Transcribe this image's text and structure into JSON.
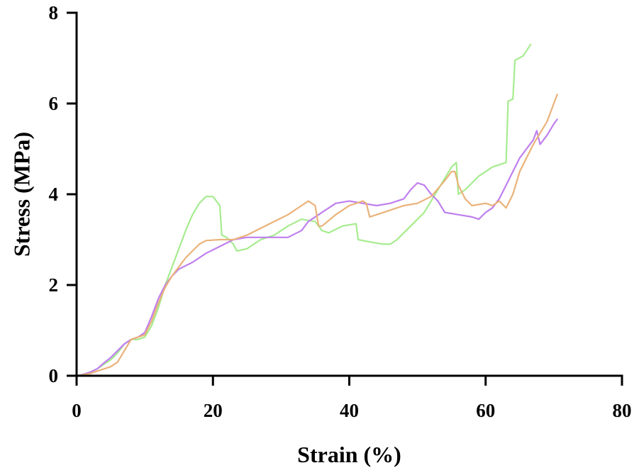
{
  "chart_data": {
    "type": "line",
    "xlabel": "Strain (%)",
    "ylabel": "Stress (MPa)",
    "xlim": [
      0,
      80
    ],
    "ylim": [
      0,
      8
    ],
    "xticks": [
      0,
      20,
      40,
      60,
      80
    ],
    "yticks": [
      0,
      2,
      4,
      6,
      8
    ],
    "xtick_labels": [
      "0",
      "20",
      "40",
      "60",
      "80"
    ],
    "ytick_labels": [
      "0",
      "2",
      "4",
      "6",
      "8"
    ],
    "grid": false,
    "legend": "none",
    "series": [
      {
        "color": "#a6ec8f",
        "points": [
          [
            0,
            0
          ],
          [
            1,
            0.03
          ],
          [
            2,
            0.08
          ],
          [
            3,
            0.15
          ],
          [
            4,
            0.25
          ],
          [
            5,
            0.35
          ],
          [
            6,
            0.5
          ],
          [
            7,
            0.7
          ],
          [
            8,
            0.8
          ],
          [
            9,
            0.8
          ],
          [
            10,
            0.85
          ],
          [
            11,
            1.1
          ],
          [
            12,
            1.5
          ],
          [
            13,
            2.0
          ],
          [
            14,
            2.4
          ],
          [
            15,
            2.8
          ],
          [
            16,
            3.2
          ],
          [
            17,
            3.55
          ],
          [
            18,
            3.8
          ],
          [
            19,
            3.95
          ],
          [
            20,
            3.95
          ],
          [
            21,
            3.75
          ],
          [
            21.3,
            3.1
          ],
          [
            22,
            3.05
          ],
          [
            23,
            2.9
          ],
          [
            23.5,
            2.75
          ],
          [
            25,
            2.8
          ],
          [
            27,
            3.0
          ],
          [
            29,
            3.1
          ],
          [
            31,
            3.3
          ],
          [
            33,
            3.45
          ],
          [
            35,
            3.4
          ],
          [
            36,
            3.2
          ],
          [
            37,
            3.15
          ],
          [
            39,
            3.3
          ],
          [
            41,
            3.35
          ],
          [
            41.3,
            3.0
          ],
          [
            43,
            2.95
          ],
          [
            45,
            2.9
          ],
          [
            46,
            2.9
          ],
          [
            47,
            3.0
          ],
          [
            49,
            3.3
          ],
          [
            51,
            3.6
          ],
          [
            53,
            4.1
          ],
          [
            55,
            4.6
          ],
          [
            55.7,
            4.7
          ],
          [
            56,
            4.0
          ],
          [
            57,
            4.1
          ],
          [
            59,
            4.4
          ],
          [
            61,
            4.6
          ],
          [
            63,
            4.7
          ],
          [
            63.3,
            6.05
          ],
          [
            64,
            6.1
          ],
          [
            64.3,
            6.95
          ],
          [
            65.5,
            7.05
          ],
          [
            66.6,
            7.3
          ]
        ]
      },
      {
        "color": "#bf7fee",
        "points": [
          [
            0,
            0
          ],
          [
            1,
            0.03
          ],
          [
            2,
            0.08
          ],
          [
            3,
            0.15
          ],
          [
            4,
            0.28
          ],
          [
            5,
            0.4
          ],
          [
            6,
            0.55
          ],
          [
            7,
            0.7
          ],
          [
            8,
            0.8
          ],
          [
            9,
            0.85
          ],
          [
            10,
            0.95
          ],
          [
            11,
            1.3
          ],
          [
            12,
            1.7
          ],
          [
            13,
            2.0
          ],
          [
            14,
            2.2
          ],
          [
            15,
            2.35
          ],
          [
            17,
            2.5
          ],
          [
            19,
            2.7
          ],
          [
            21,
            2.85
          ],
          [
            23,
            3.0
          ],
          [
            25,
            3.05
          ],
          [
            27,
            3.05
          ],
          [
            29,
            3.05
          ],
          [
            31,
            3.05
          ],
          [
            33,
            3.2
          ],
          [
            34,
            3.4
          ],
          [
            36,
            3.6
          ],
          [
            38,
            3.8
          ],
          [
            40,
            3.85
          ],
          [
            42,
            3.8
          ],
          [
            44,
            3.75
          ],
          [
            46,
            3.8
          ],
          [
            48,
            3.9
          ],
          [
            49,
            4.1
          ],
          [
            50,
            4.25
          ],
          [
            51,
            4.2
          ],
          [
            52,
            4.0
          ],
          [
            53,
            3.85
          ],
          [
            54,
            3.6
          ],
          [
            56,
            3.55
          ],
          [
            58,
            3.5
          ],
          [
            59,
            3.45
          ],
          [
            60,
            3.6
          ],
          [
            61,
            3.7
          ],
          [
            62,
            3.9
          ],
          [
            63,
            4.2
          ],
          [
            64,
            4.5
          ],
          [
            65,
            4.8
          ],
          [
            66,
            5.0
          ],
          [
            67,
            5.2
          ],
          [
            67.5,
            5.4
          ],
          [
            68,
            5.1
          ],
          [
            69,
            5.3
          ],
          [
            70,
            5.55
          ],
          [
            70.5,
            5.65
          ]
        ]
      },
      {
        "color": "#eab27a",
        "points": [
          [
            0,
            0
          ],
          [
            1,
            0.02
          ],
          [
            2,
            0.05
          ],
          [
            3,
            0.1
          ],
          [
            4,
            0.15
          ],
          [
            5,
            0.2
          ],
          [
            6,
            0.3
          ],
          [
            7,
            0.55
          ],
          [
            8,
            0.8
          ],
          [
            9,
            0.85
          ],
          [
            10,
            0.9
          ],
          [
            11,
            1.2
          ],
          [
            12,
            1.6
          ],
          [
            13,
            1.95
          ],
          [
            14,
            2.2
          ],
          [
            15,
            2.4
          ],
          [
            16,
            2.6
          ],
          [
            17,
            2.75
          ],
          [
            18,
            2.9
          ],
          [
            19,
            2.98
          ],
          [
            21,
            3.0
          ],
          [
            23,
            3.0
          ],
          [
            25,
            3.1
          ],
          [
            27,
            3.25
          ],
          [
            29,
            3.4
          ],
          [
            31,
            3.55
          ],
          [
            33,
            3.75
          ],
          [
            34,
            3.85
          ],
          [
            35,
            3.75
          ],
          [
            35.5,
            3.3
          ],
          [
            36,
            3.3
          ],
          [
            38,
            3.55
          ],
          [
            40,
            3.75
          ],
          [
            42,
            3.85
          ],
          [
            42.5,
            3.8
          ],
          [
            43,
            3.5
          ],
          [
            44,
            3.55
          ],
          [
            46,
            3.65
          ],
          [
            48,
            3.75
          ],
          [
            50,
            3.8
          ],
          [
            52,
            3.95
          ],
          [
            54,
            4.3
          ],
          [
            55,
            4.5
          ],
          [
            55.5,
            4.5
          ],
          [
            56,
            4.2
          ],
          [
            57,
            3.9
          ],
          [
            58,
            3.75
          ],
          [
            60,
            3.8
          ],
          [
            61,
            3.75
          ],
          [
            62,
            3.85
          ],
          [
            63,
            3.7
          ],
          [
            64,
            4.0
          ],
          [
            65,
            4.5
          ],
          [
            66,
            4.8
          ],
          [
            67,
            5.1
          ],
          [
            68,
            5.35
          ],
          [
            69,
            5.6
          ],
          [
            70,
            6.0
          ],
          [
            70.5,
            6.2
          ]
        ]
      }
    ]
  }
}
